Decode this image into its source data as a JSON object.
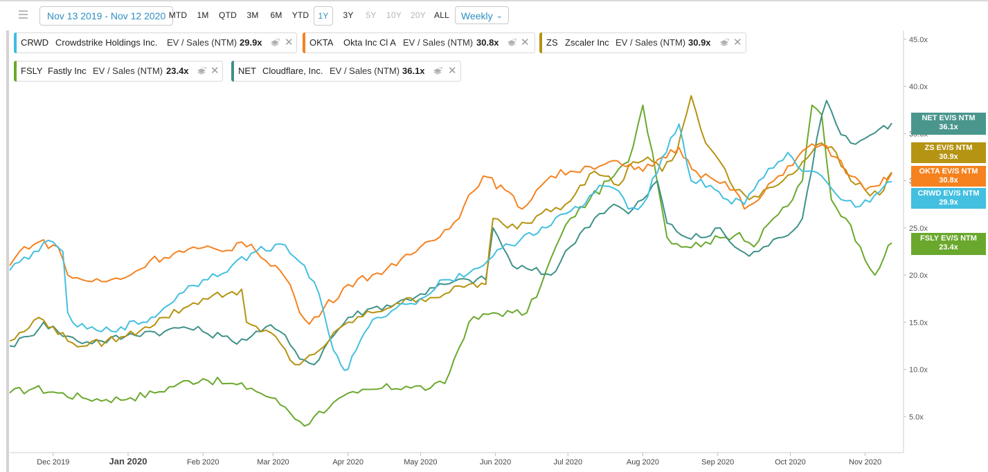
{
  "toolbar": {
    "date_range": "Nov 13 2019 - Nov 12 2020",
    "ranges": [
      "MTD",
      "1M",
      "QTD",
      "3M",
      "6M",
      "YTD",
      "1Y",
      "3Y",
      "5Y",
      "10Y",
      "20Y",
      "ALL"
    ],
    "active_range": "1Y",
    "frequency": "Weekly",
    "menu_icon": "hamburger-menu-icon",
    "chevron_icon": "chevron-down-icon"
  },
  "legend": [
    {
      "ticker": "CRWD",
      "name": "Crowdstrike Holdings Inc.",
      "metric": "EV / Sales (NTM)",
      "value": "29.9x",
      "color": "#3dbde0"
    },
    {
      "ticker": "OKTA",
      "name": "Okta Inc Cl A",
      "metric": "EV / Sales (NTM)",
      "value": "30.8x",
      "color": "#f5821f"
    },
    {
      "ticker": "ZS",
      "name": "Zscaler Inc",
      "metric": "EV / Sales (NTM)",
      "value": "30.9x",
      "color": "#b5920f"
    },
    {
      "ticker": "FSLY",
      "name": "Fastly Inc",
      "metric": "EV / Sales (NTM)",
      "value": "23.4x",
      "color": "#6aa82d"
    },
    {
      "ticker": "NET",
      "name": "Cloudflare, Inc.",
      "metric": "EV / Sales (NTM)",
      "value": "36.1x",
      "color": "#3e9188"
    }
  ],
  "end_tags": [
    {
      "label": "NET EV/S NTM",
      "value": "36.1x",
      "color": "#4a968d"
    },
    {
      "label": "ZS EV/S NTM",
      "value": "30.9x",
      "color": "#b59414"
    },
    {
      "label": "OKTA EV/S NTM",
      "value": "30.8x",
      "color": "#f5821f"
    },
    {
      "label": "CRWD EV/S NTM",
      "value": "29.9x",
      "color": "#43bfe0"
    },
    {
      "label": "FSLY EV/S NTM",
      "value": "23.4x",
      "color": "#6aa82d"
    }
  ],
  "chart_data": {
    "type": "line",
    "x_labels": [
      "Dec 2019",
      "Jan 2020",
      "Feb 2020",
      "Mar 2020",
      "Apr 2020",
      "May 2020",
      "Jun 2020",
      "Jul 2020",
      "Aug 2020",
      "Sep 2020",
      "Oct 2020",
      "Nov 2020"
    ],
    "y_tick_labels": [
      "5.0x",
      "10.0x",
      "15.0x",
      "20.0x",
      "25.0x",
      "30.0x",
      "35.0x",
      "40.0x",
      "45.0x"
    ],
    "y_ticks": [
      5,
      10,
      15,
      20,
      25,
      30,
      35,
      40,
      45
    ],
    "ylim": [
      2,
      46
    ],
    "x_range_days": [
      0,
      365
    ],
    "series": [
      {
        "name": "CRWD",
        "color": "#43bfe0",
        "points": [
          [
            0,
            20.5
          ],
          [
            10,
            22.5
          ],
          [
            18,
            23.5
          ],
          [
            22,
            22.5
          ],
          [
            24,
            16
          ],
          [
            28,
            14.5
          ],
          [
            38,
            14
          ],
          [
            46,
            14.5
          ],
          [
            55,
            15
          ],
          [
            62,
            16
          ],
          [
            70,
            18
          ],
          [
            80,
            19.5
          ],
          [
            92,
            21
          ],
          [
            102,
            22.5
          ],
          [
            112,
            23.3
          ],
          [
            122,
            21
          ],
          [
            128,
            18
          ],
          [
            130,
            16
          ],
          [
            134,
            12
          ],
          [
            137,
            10.5
          ],
          [
            140,
            10
          ],
          [
            145,
            13
          ],
          [
            152,
            15.5
          ],
          [
            160,
            16.5
          ],
          [
            170,
            17.5
          ],
          [
            180,
            19.5
          ],
          [
            190,
            20.2
          ],
          [
            200,
            22
          ],
          [
            207,
            23.2
          ],
          [
            215,
            24.5
          ],
          [
            222,
            25
          ],
          [
            230,
            26.5
          ],
          [
            238,
            27.5
          ],
          [
            244,
            29.5
          ],
          [
            250,
            29.2
          ],
          [
            256,
            27
          ],
          [
            262,
            27.5
          ],
          [
            270,
            32.5
          ],
          [
            277,
            36
          ],
          [
            282,
            30
          ],
          [
            290,
            29.5
          ],
          [
            297,
            28
          ],
          [
            304,
            27.5
          ],
          [
            310,
            30
          ],
          [
            318,
            32
          ],
          [
            322,
            33
          ],
          [
            326,
            31.5
          ],
          [
            330,
            31
          ],
          [
            336,
            30.5
          ],
          [
            344,
            28
          ],
          [
            352,
            27.3
          ],
          [
            358,
            28.5
          ],
          [
            365,
            29.9
          ]
        ]
      },
      {
        "name": "OKTA",
        "color": "#f5821f",
        "points": [
          [
            0,
            21
          ],
          [
            6,
            23
          ],
          [
            12,
            23.5
          ],
          [
            20,
            23
          ],
          [
            24,
            20
          ],
          [
            30,
            19.5
          ],
          [
            40,
            19.3
          ],
          [
            50,
            20
          ],
          [
            58,
            21.5
          ],
          [
            68,
            22.3
          ],
          [
            78,
            22.8
          ],
          [
            88,
            22.5
          ],
          [
            96,
            23.5
          ],
          [
            102,
            22.5
          ],
          [
            110,
            21
          ],
          [
            116,
            19
          ],
          [
            120,
            16
          ],
          [
            124,
            14.8
          ],
          [
            130,
            16.5
          ],
          [
            140,
            19
          ],
          [
            150,
            20
          ],
          [
            160,
            21
          ],
          [
            170,
            23
          ],
          [
            180,
            24.8
          ],
          [
            186,
            26
          ],
          [
            190,
            28.5
          ],
          [
            196,
            30.5
          ],
          [
            205,
            29
          ],
          [
            212,
            27
          ],
          [
            218,
            29
          ],
          [
            224,
            30.5
          ],
          [
            232,
            31
          ],
          [
            240,
            31.5
          ],
          [
            248,
            32
          ],
          [
            255,
            31.5
          ],
          [
            262,
            31
          ],
          [
            270,
            32.5
          ],
          [
            277,
            33.5
          ],
          [
            284,
            31
          ],
          [
            292,
            30
          ],
          [
            300,
            29
          ],
          [
            304,
            27
          ],
          [
            310,
            28
          ],
          [
            318,
            30.5
          ],
          [
            326,
            32.5
          ],
          [
            330,
            33.5
          ],
          [
            336,
            33.8
          ],
          [
            342,
            32.5
          ],
          [
            348,
            30.5
          ],
          [
            354,
            29
          ],
          [
            360,
            29.5
          ],
          [
            365,
            30.8
          ]
        ]
      },
      {
        "name": "ZS",
        "color": "#b5920f",
        "points": [
          [
            0,
            13
          ],
          [
            6,
            14
          ],
          [
            12,
            15.5
          ],
          [
            18,
            14.5
          ],
          [
            24,
            13
          ],
          [
            32,
            12.5
          ],
          [
            40,
            13
          ],
          [
            48,
            13.5
          ],
          [
            56,
            14.5
          ],
          [
            64,
            15.5
          ],
          [
            72,
            16.5
          ],
          [
            80,
            17.5
          ],
          [
            90,
            18
          ],
          [
            96,
            18.5
          ],
          [
            98,
            15
          ],
          [
            104,
            14
          ],
          [
            110,
            13.5
          ],
          [
            116,
            11
          ],
          [
            120,
            10.5
          ],
          [
            124,
            11.5
          ],
          [
            128,
            12
          ],
          [
            132,
            13
          ],
          [
            140,
            15
          ],
          [
            150,
            16
          ],
          [
            160,
            17
          ],
          [
            170,
            17.5
          ],
          [
            180,
            18
          ],
          [
            190,
            19
          ],
          [
            197,
            19
          ],
          [
            200,
            26
          ],
          [
            206,
            25
          ],
          [
            214,
            25.5
          ],
          [
            222,
            27
          ],
          [
            230,
            27.5
          ],
          [
            236,
            29.5
          ],
          [
            242,
            31
          ],
          [
            246,
            30.5
          ],
          [
            252,
            29.5
          ],
          [
            258,
            32
          ],
          [
            264,
            32.5
          ],
          [
            270,
            31
          ],
          [
            276,
            33
          ],
          [
            282,
            39
          ],
          [
            288,
            34
          ],
          [
            294,
            32
          ],
          [
            300,
            29
          ],
          [
            306,
            28
          ],
          [
            312,
            29
          ],
          [
            320,
            30
          ],
          [
            328,
            32
          ],
          [
            336,
            34
          ],
          [
            342,
            33
          ],
          [
            348,
            30
          ],
          [
            354,
            29
          ],
          [
            360,
            28.5
          ],
          [
            365,
            30.9
          ]
        ]
      },
      {
        "name": "FSLY",
        "color": "#6aa82d",
        "points": [
          [
            0,
            7.5
          ],
          [
            10,
            8
          ],
          [
            20,
            7.5
          ],
          [
            30,
            7
          ],
          [
            40,
            6.8
          ],
          [
            50,
            7
          ],
          [
            60,
            7.5
          ],
          [
            70,
            8.5
          ],
          [
            80,
            9
          ],
          [
            90,
            8.5
          ],
          [
            100,
            8
          ],
          [
            108,
            7
          ],
          [
            114,
            6
          ],
          [
            120,
            4.5
          ],
          [
            122,
            4
          ],
          [
            126,
            5
          ],
          [
            134,
            6.5
          ],
          [
            144,
            7.5
          ],
          [
            154,
            8
          ],
          [
            164,
            8.2
          ],
          [
            174,
            8
          ],
          [
            180,
            8.5
          ],
          [
            190,
            15
          ],
          [
            200,
            16
          ],
          [
            208,
            16
          ],
          [
            214,
            16
          ],
          [
            220,
            19
          ],
          [
            226,
            23
          ],
          [
            232,
            26
          ],
          [
            240,
            28
          ],
          [
            248,
            30
          ],
          [
            256,
            32
          ],
          [
            262,
            38
          ],
          [
            266,
            33
          ],
          [
            272,
            24
          ],
          [
            280,
            23
          ],
          [
            288,
            23.5
          ],
          [
            296,
            24
          ],
          [
            302,
            24.5
          ],
          [
            308,
            23
          ],
          [
            316,
            26
          ],
          [
            324,
            28
          ],
          [
            328,
            30
          ],
          [
            332,
            38
          ],
          [
            336,
            37
          ],
          [
            340,
            28
          ],
          [
            346,
            26
          ],
          [
            352,
            23
          ],
          [
            358,
            20
          ],
          [
            362,
            22
          ],
          [
            365,
            23.4
          ]
        ]
      },
      {
        "name": "NET",
        "color": "#3e9188",
        "points": [
          [
            0,
            12.5
          ],
          [
            8,
            13.5
          ],
          [
            14,
            15
          ],
          [
            20,
            14
          ],
          [
            28,
            13
          ],
          [
            38,
            13
          ],
          [
            48,
            13.5
          ],
          [
            56,
            14
          ],
          [
            64,
            14
          ],
          [
            72,
            14.5
          ],
          [
            80,
            14
          ],
          [
            88,
            13.5
          ],
          [
            92,
            13
          ],
          [
            100,
            13.5
          ],
          [
            106,
            14.5
          ],
          [
            112,
            14
          ],
          [
            118,
            12
          ],
          [
            122,
            11
          ],
          [
            126,
            10.5
          ],
          [
            132,
            13
          ],
          [
            140,
            15.5
          ],
          [
            150,
            16.5
          ],
          [
            160,
            17
          ],
          [
            170,
            18
          ],
          [
            180,
            19
          ],
          [
            190,
            19.5
          ],
          [
            197,
            19.5
          ],
          [
            200,
            25
          ],
          [
            208,
            21
          ],
          [
            216,
            20.5
          ],
          [
            224,
            20
          ],
          [
            232,
            23
          ],
          [
            238,
            25
          ],
          [
            244,
            26.5
          ],
          [
            250,
            27.5
          ],
          [
            256,
            26.5
          ],
          [
            262,
            28
          ],
          [
            268,
            30
          ],
          [
            272,
            25.5
          ],
          [
            280,
            24
          ],
          [
            288,
            24
          ],
          [
            294,
            25
          ],
          [
            300,
            23
          ],
          [
            306,
            22
          ],
          [
            312,
            23
          ],
          [
            320,
            24
          ],
          [
            328,
            26
          ],
          [
            334,
            34.5
          ],
          [
            338,
            38.5
          ],
          [
            342,
            36
          ],
          [
            348,
            34
          ],
          [
            354,
            34.5
          ],
          [
            360,
            35.5
          ],
          [
            365,
            36.1
          ]
        ]
      }
    ]
  }
}
